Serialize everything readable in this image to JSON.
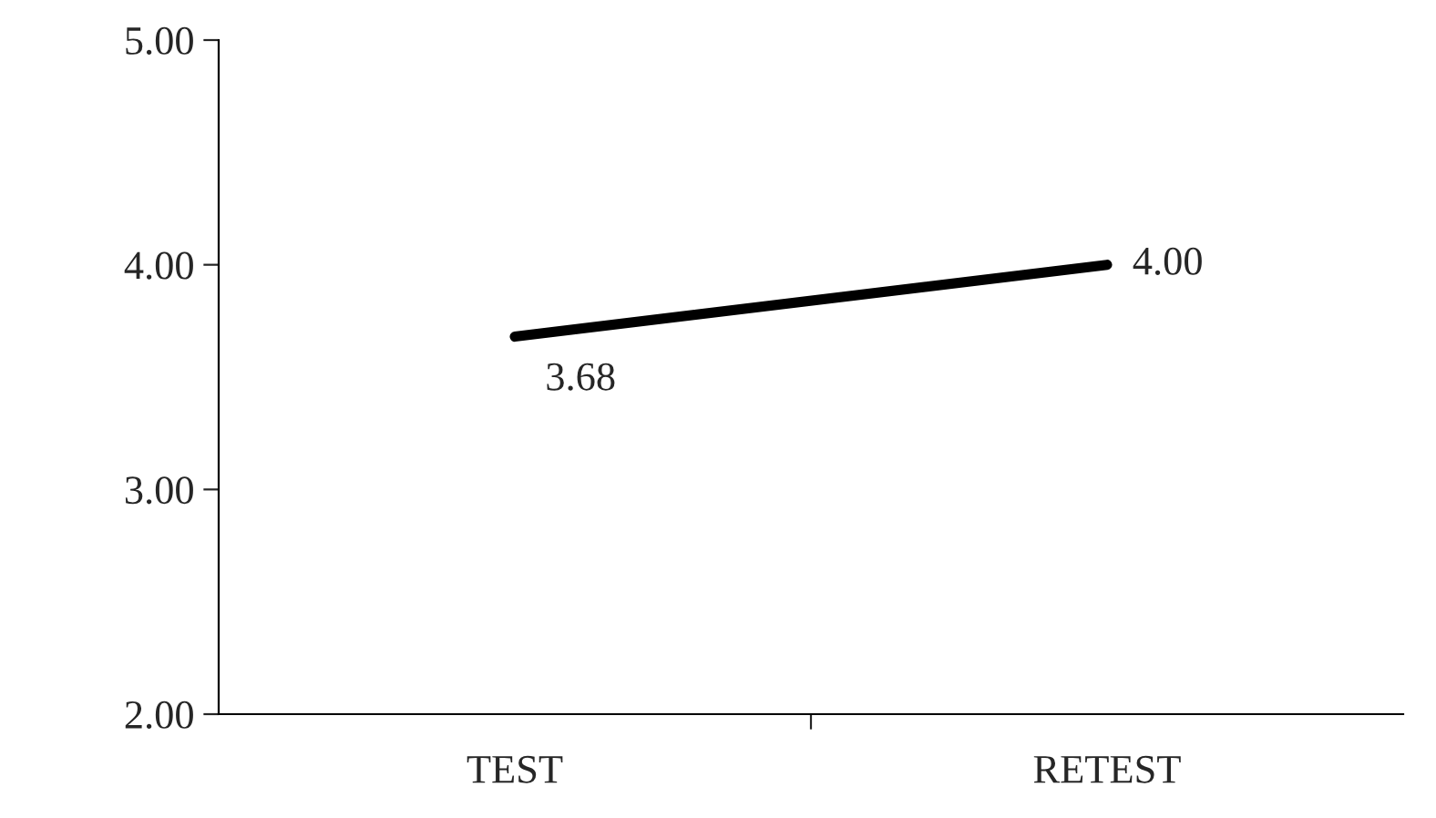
{
  "chart_data": {
    "type": "line",
    "categories": [
      "TEST",
      "RETEST"
    ],
    "series": [
      {
        "color": "#000000",
        "values": [
          3.68,
          4.0
        ],
        "value_labels": [
          "3.68",
          "4.00"
        ]
      }
    ],
    "ylim": [
      2,
      5
    ],
    "yticks": [
      {
        "value": 2,
        "label": "2.00"
      },
      {
        "value": 3,
        "label": "3.00"
      },
      {
        "value": 4,
        "label": "4.00"
      },
      {
        "value": 5,
        "label": "5.00"
      }
    ],
    "grid": false,
    "legend": false,
    "marker": "none",
    "line_style": "solid"
  }
}
